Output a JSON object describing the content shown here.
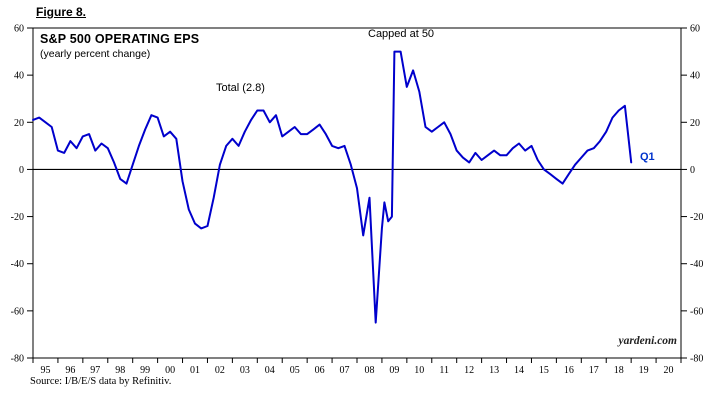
{
  "figure_label": "Figure 8.",
  "title": "S&P 500 OPERATING EPS",
  "subtitle": "(yearly percent change)",
  "annotations": {
    "capped": "Capped at 50",
    "total": "Total (2.8)",
    "q1": "Q1"
  },
  "watermark": "yardeni.com",
  "source": "Source: I/B/E/S data by Refinitiv.",
  "colors": {
    "line": "#0000cc",
    "axis": "#000000",
    "q1_label": "#0033cc",
    "background": "#ffffff"
  },
  "chart_data": {
    "type": "line",
    "title": "S&P 500 OPERATING EPS",
    "subtitle": "(yearly percent change)",
    "ylabel": "yearly percent change (%)",
    "ylim": [
      -80,
      60
    ],
    "ytick_step": 20,
    "ytick_values": [
      60,
      40,
      20,
      0,
      -20,
      -40,
      -60,
      -80
    ],
    "x_range": [
      1995,
      2021
    ],
    "x_tick_labels": [
      "95",
      "96",
      "97",
      "98",
      "99",
      "00",
      "01",
      "02",
      "03",
      "04",
      "05",
      "06",
      "07",
      "08",
      "09",
      "10",
      "11",
      "12",
      "13",
      "14",
      "15",
      "16",
      "17",
      "18",
      "19",
      "20"
    ],
    "grid": false,
    "zero_line": true,
    "legend_position": "none",
    "series": [
      {
        "name": "S&P 500 Operating EPS yearly percent change",
        "points": [
          [
            1995.0,
            21
          ],
          [
            1995.25,
            22
          ],
          [
            1995.5,
            20
          ],
          [
            1995.75,
            18
          ],
          [
            1996.0,
            8
          ],
          [
            1996.25,
            7
          ],
          [
            1996.5,
            12
          ],
          [
            1996.75,
            9
          ],
          [
            1997.0,
            14
          ],
          [
            1997.25,
            15
          ],
          [
            1997.5,
            8
          ],
          [
            1997.75,
            11
          ],
          [
            1998.0,
            9
          ],
          [
            1998.25,
            3
          ],
          [
            1998.5,
            -4
          ],
          [
            1998.75,
            -6
          ],
          [
            1999.0,
            2
          ],
          [
            1999.25,
            10
          ],
          [
            1999.5,
            17
          ],
          [
            1999.75,
            23
          ],
          [
            2000.0,
            22
          ],
          [
            2000.25,
            14
          ],
          [
            2000.5,
            16
          ],
          [
            2000.75,
            13
          ],
          [
            2001.0,
            -5
          ],
          [
            2001.25,
            -17
          ],
          [
            2001.5,
            -23
          ],
          [
            2001.75,
            -25
          ],
          [
            2002.0,
            -24
          ],
          [
            2002.25,
            -12
          ],
          [
            2002.5,
            2
          ],
          [
            2002.75,
            10
          ],
          [
            2003.0,
            13
          ],
          [
            2003.25,
            10
          ],
          [
            2003.5,
            16
          ],
          [
            2003.75,
            21
          ],
          [
            2004.0,
            25
          ],
          [
            2004.25,
            25
          ],
          [
            2004.5,
            20
          ],
          [
            2004.75,
            23
          ],
          [
            2005.0,
            14
          ],
          [
            2005.25,
            16
          ],
          [
            2005.5,
            18
          ],
          [
            2005.75,
            15
          ],
          [
            2006.0,
            15
          ],
          [
            2006.25,
            17
          ],
          [
            2006.5,
            19
          ],
          [
            2006.75,
            15
          ],
          [
            2007.0,
            10
          ],
          [
            2007.25,
            9
          ],
          [
            2007.5,
            10
          ],
          [
            2007.75,
            2
          ],
          [
            2008.0,
            -8
          ],
          [
            2008.25,
            -28
          ],
          [
            2008.5,
            -12
          ],
          [
            2008.75,
            -65
          ],
          [
            2009.0,
            -25
          ],
          [
            2009.1,
            -14
          ],
          [
            2009.25,
            -22
          ],
          [
            2009.4,
            -20
          ],
          [
            2009.5,
            50
          ],
          [
            2009.75,
            50
          ],
          [
            2010.0,
            35
          ],
          [
            2010.25,
            42
          ],
          [
            2010.5,
            33
          ],
          [
            2010.75,
            18
          ],
          [
            2011.0,
            16
          ],
          [
            2011.25,
            18
          ],
          [
            2011.5,
            20
          ],
          [
            2011.75,
            15
          ],
          [
            2012.0,
            8
          ],
          [
            2012.25,
            5
          ],
          [
            2012.5,
            3
          ],
          [
            2012.75,
            7
          ],
          [
            2013.0,
            4
          ],
          [
            2013.25,
            6
          ],
          [
            2013.5,
            8
          ],
          [
            2013.75,
            6
          ],
          [
            2014.0,
            6
          ],
          [
            2014.25,
            9
          ],
          [
            2014.5,
            11
          ],
          [
            2014.75,
            8
          ],
          [
            2015.0,
            10
          ],
          [
            2015.25,
            4
          ],
          [
            2015.5,
            0
          ],
          [
            2015.75,
            -2
          ],
          [
            2016.0,
            -4
          ],
          [
            2016.25,
            -6
          ],
          [
            2016.5,
            -2
          ],
          [
            2016.75,
            2
          ],
          [
            2017.0,
            5
          ],
          [
            2017.25,
            8
          ],
          [
            2017.5,
            9
          ],
          [
            2017.75,
            12
          ],
          [
            2018.0,
            16
          ],
          [
            2018.25,
            22
          ],
          [
            2018.5,
            25
          ],
          [
            2018.75,
            27
          ],
          [
            2019.0,
            3
          ]
        ]
      }
    ]
  }
}
